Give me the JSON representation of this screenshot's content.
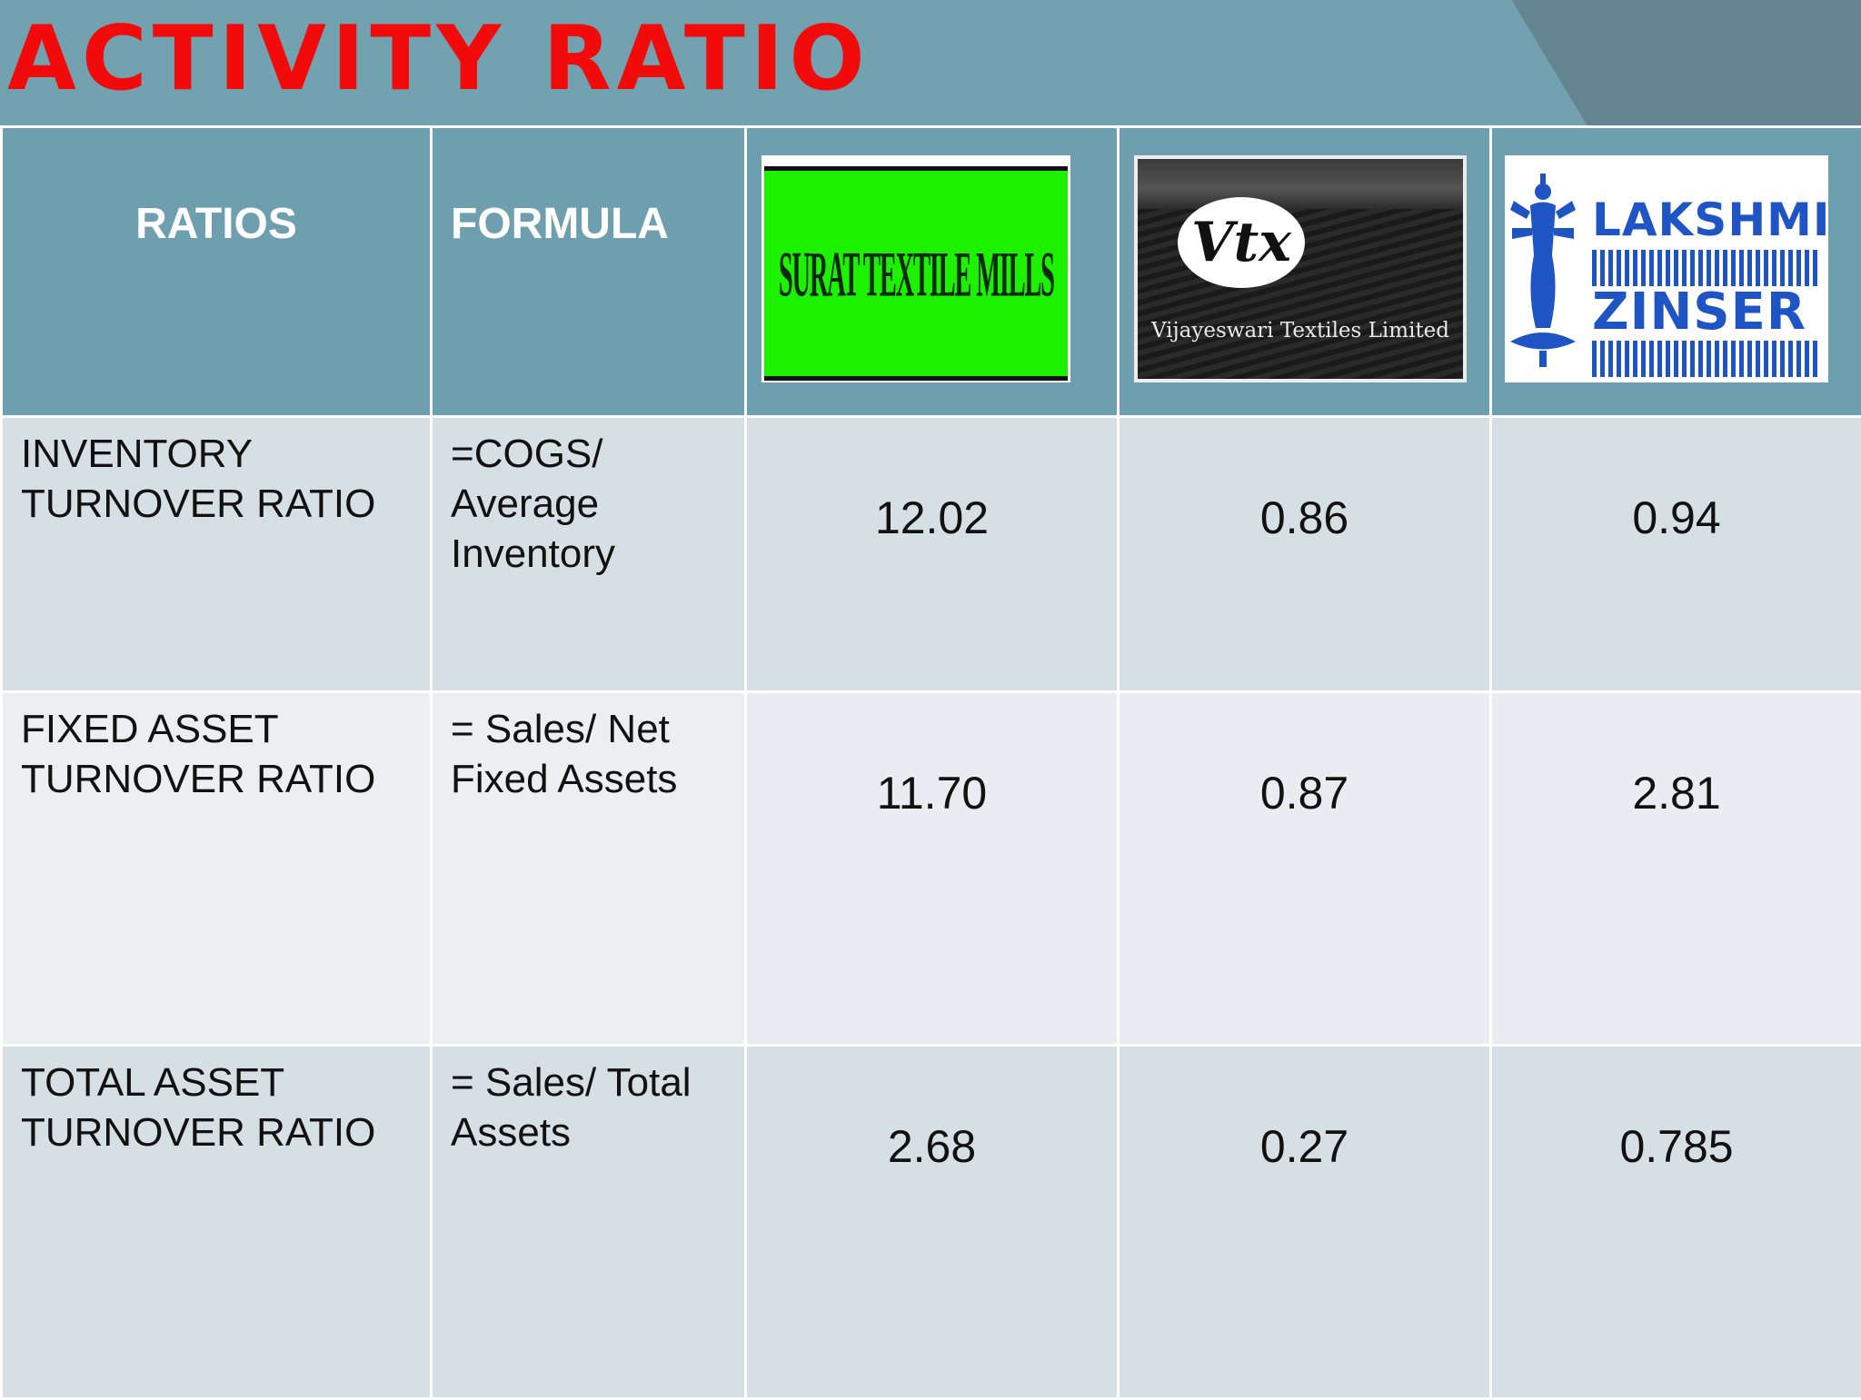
{
  "slide": {
    "title": "ACTIVITY RATIO",
    "colors": {
      "title": "#f10b0b",
      "header_band": "#72a1b0",
      "table_header": "#6d9fae",
      "row_dark": "#d6dfe4",
      "row_light": "#eaecf1"
    }
  },
  "table": {
    "headers": {
      "ratios": "RATIOS",
      "formula": "FORMULA"
    },
    "companies": [
      {
        "logo_text": "SURAT TEXTILE MILLS",
        "logo_icon": "surat-textile-mills-logo"
      },
      {
        "logo_text": "Vtx",
        "logo_subtext": "Vijayeswari Textiles Limited",
        "logo_icon": "vtx-cotton-logo"
      },
      {
        "logo_text_top": "LAKSHMI",
        "logo_text_bottom": "ZINSER",
        "logo_icon": "lakshmi-goddess-logo"
      }
    ],
    "rows": [
      {
        "ratio": "INVENTORY\nTURNOVER RATIO",
        "formula": "=COGS/\nAverage\nInventory",
        "values": [
          "12.02",
          "0.86",
          "0.94"
        ]
      },
      {
        "ratio": "FIXED  ASSET\nTURNOVER RATIO",
        "formula": "= Sales/ Net\nFixed Assets",
        "values": [
          "11.70",
          "0.87",
          "2.81"
        ]
      },
      {
        "ratio": "TOTAL  ASSET\nTURNOVER RATIO",
        "formula": "= Sales/ Total\nAssets",
        "values": [
          "2.68",
          "0.27",
          "0.785"
        ]
      }
    ]
  }
}
